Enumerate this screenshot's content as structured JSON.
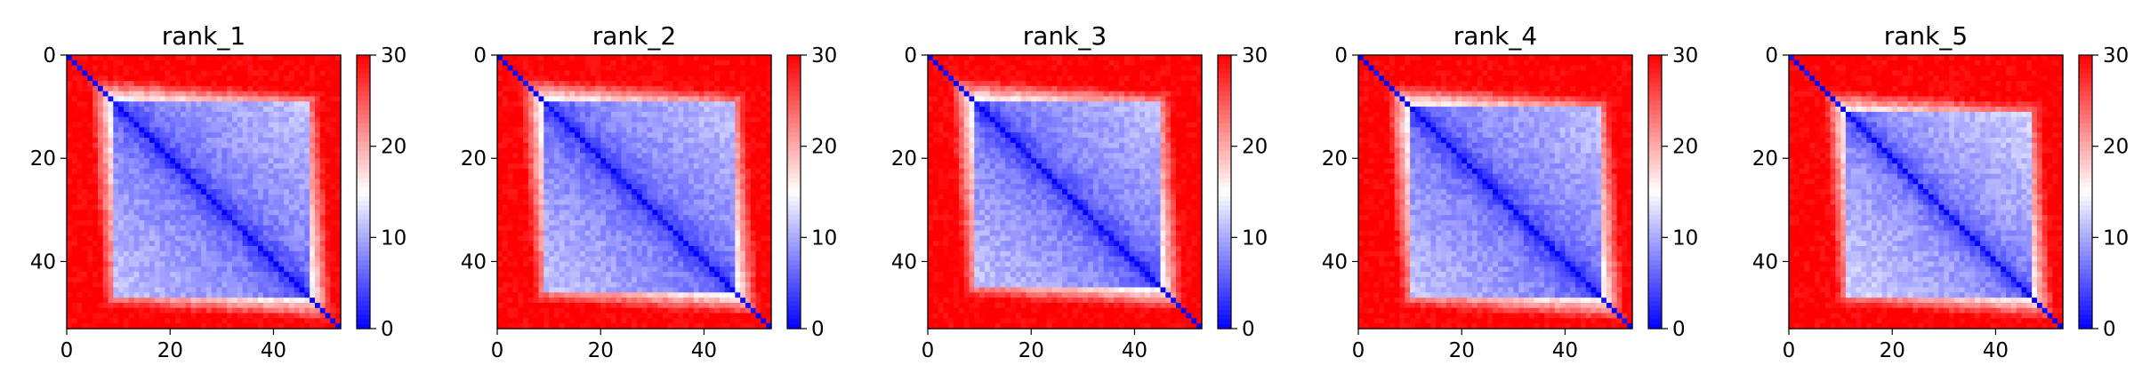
{
  "chart_data": [
    {
      "type": "heatmap",
      "title": "rank_1",
      "xlim": [
        0,
        53
      ],
      "ylim": [
        53,
        0
      ],
      "xticks": [
        0,
        20,
        40
      ],
      "yticks": [
        0,
        20,
        40
      ],
      "matrix_size": 53,
      "structure": {
        "domain_start": 9,
        "domain_end": 46,
        "upper_far_value": 30,
        "lower_far_value": 30,
        "domain_value": 7,
        "diagonal_value": 0
      },
      "colorbar": {
        "cmap": "bwr",
        "vmin": 0,
        "vmax": 30,
        "ticks": [
          0,
          10,
          20,
          30
        ]
      }
    },
    {
      "type": "heatmap",
      "title": "rank_2",
      "xlim": [
        0,
        53
      ],
      "ylim": [
        53,
        0
      ],
      "xticks": [
        0,
        20,
        40
      ],
      "yticks": [
        0,
        20,
        40
      ],
      "matrix_size": 53,
      "structure": {
        "domain_start": 9,
        "domain_end": 45,
        "upper_far_value": 30,
        "lower_far_value": 30,
        "domain_value": 7,
        "diagonal_value": 0
      },
      "colorbar": {
        "cmap": "bwr",
        "vmin": 0,
        "vmax": 30,
        "ticks": [
          0,
          10,
          20,
          30
        ]
      }
    },
    {
      "type": "heatmap",
      "title": "rank_3",
      "xlim": [
        0,
        53
      ],
      "ylim": [
        53,
        0
      ],
      "xticks": [
        0,
        20,
        40
      ],
      "yticks": [
        0,
        20,
        40
      ],
      "matrix_size": 53,
      "structure": {
        "domain_start": 9,
        "domain_end": 44,
        "upper_far_value": 30,
        "lower_far_value": 30,
        "domain_value": 7,
        "diagonal_value": 0
      },
      "colorbar": {
        "cmap": "bwr",
        "vmin": 0,
        "vmax": 30,
        "ticks": [
          0,
          10,
          20,
          30
        ]
      }
    },
    {
      "type": "heatmap",
      "title": "rank_4",
      "xlim": [
        0,
        53
      ],
      "ylim": [
        53,
        0
      ],
      "xticks": [
        0,
        20,
        40
      ],
      "yticks": [
        0,
        20,
        40
      ],
      "matrix_size": 53,
      "structure": {
        "domain_start": 10,
        "domain_end": 46,
        "upper_far_value": 30,
        "lower_far_value": 30,
        "domain_value": 7,
        "diagonal_value": 0
      },
      "colorbar": {
        "cmap": "bwr",
        "vmin": 0,
        "vmax": 30,
        "ticks": [
          0,
          10,
          20,
          30
        ]
      }
    },
    {
      "type": "heatmap",
      "title": "rank_5",
      "xlim": [
        0,
        53
      ],
      "ylim": [
        53,
        0
      ],
      "xticks": [
        0,
        20,
        40
      ],
      "yticks": [
        0,
        20,
        40
      ],
      "matrix_size": 53,
      "structure": {
        "domain_start": 11,
        "domain_end": 46,
        "upper_far_value": 30,
        "lower_far_value": 30,
        "domain_value": 8,
        "diagonal_value": 0
      },
      "colorbar": {
        "cmap": "bwr",
        "vmin": 0,
        "vmax": 30,
        "ticks": [
          0,
          10,
          20,
          30
        ]
      }
    }
  ]
}
